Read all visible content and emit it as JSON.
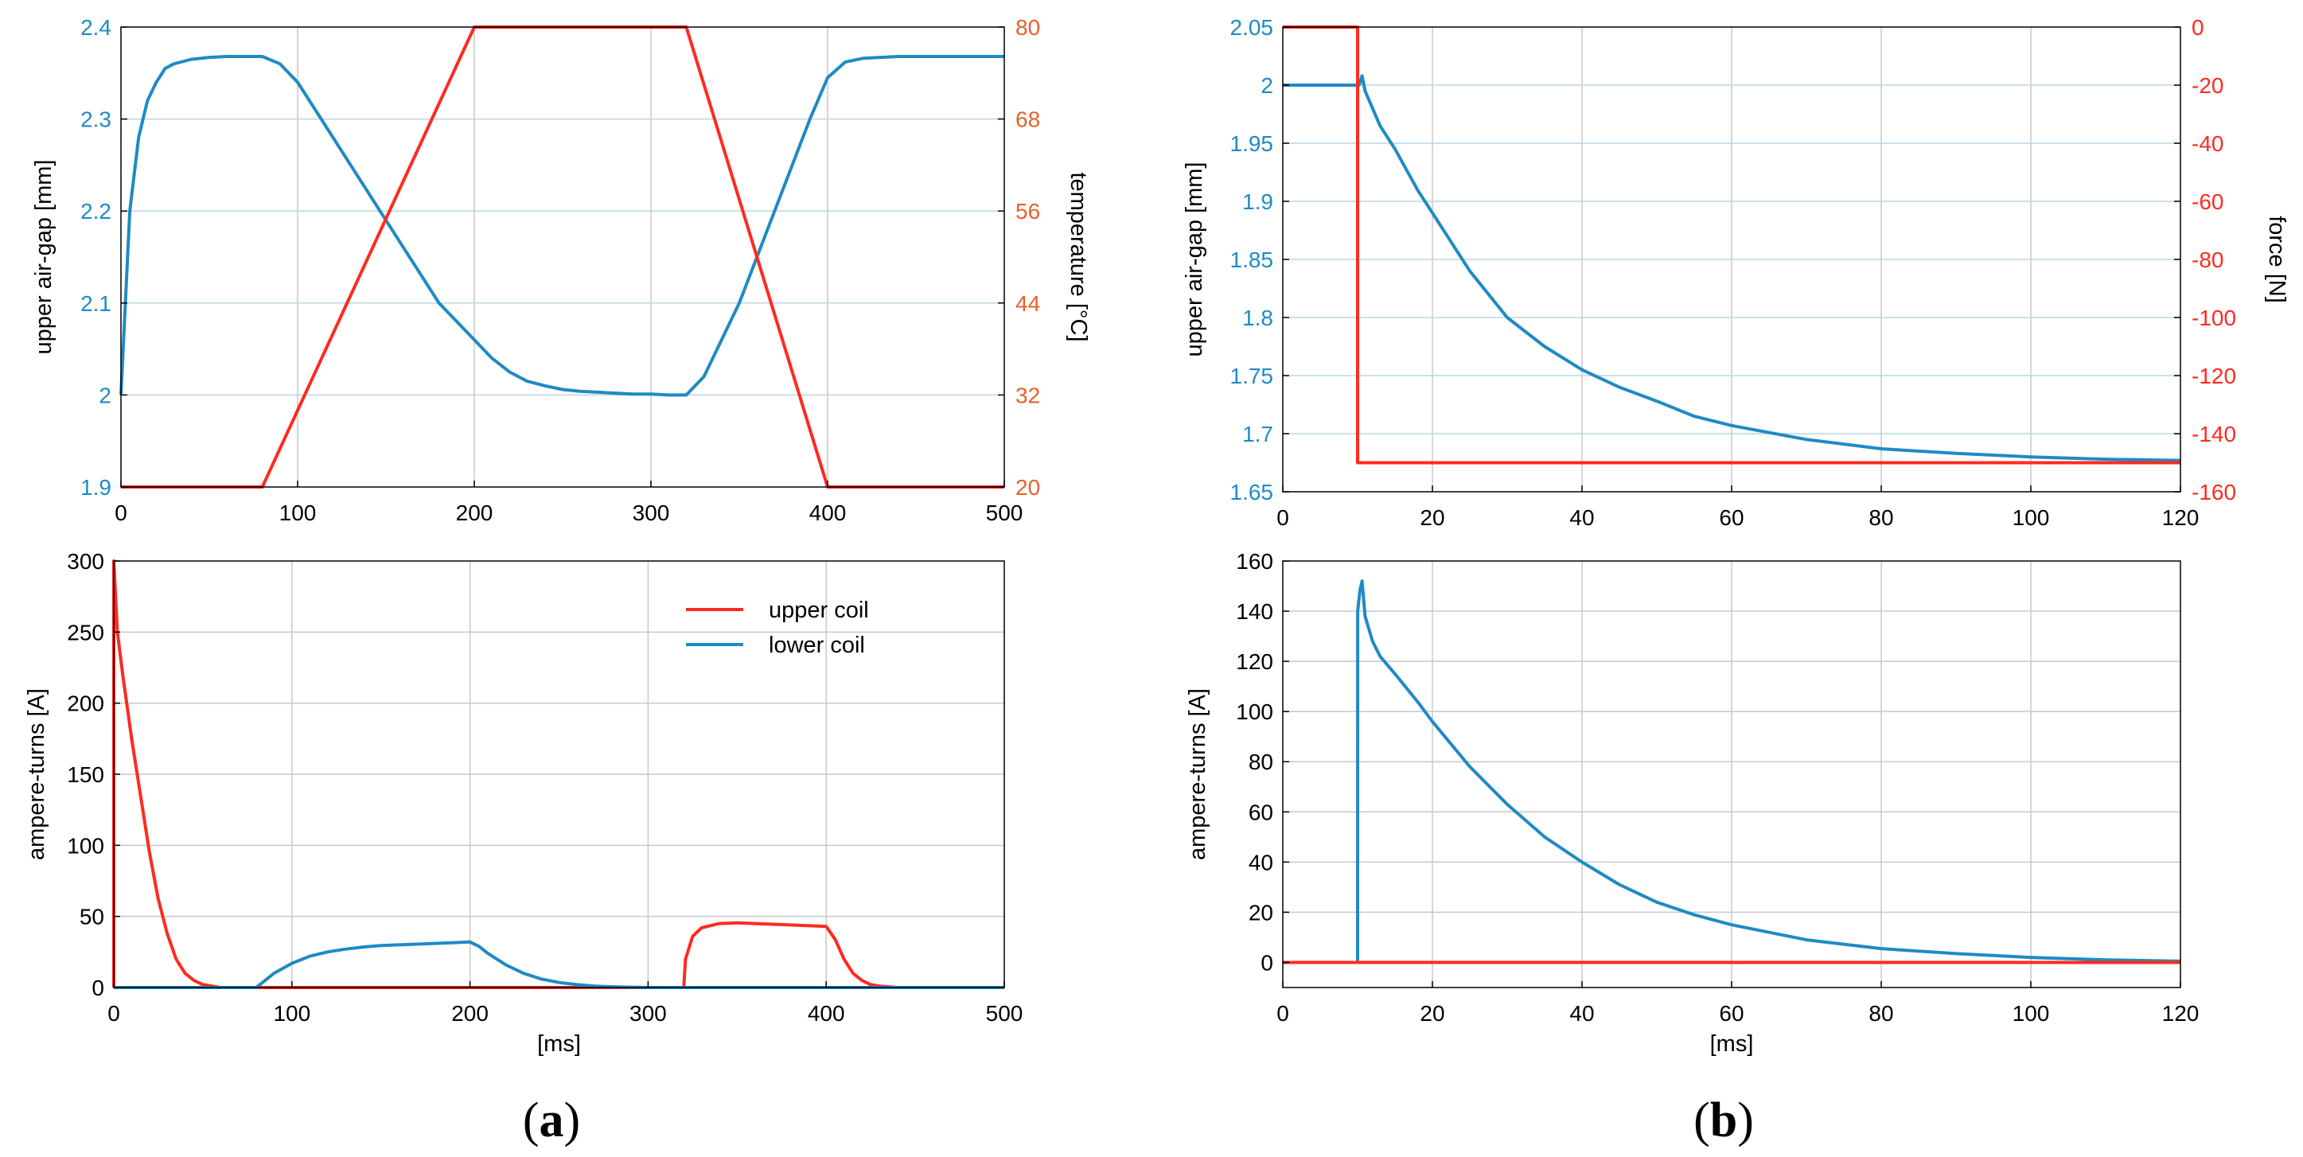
{
  "colors": {
    "blue": "#1f8ac4",
    "red": "#ff2a1f",
    "orange": "#e8602a",
    "grid": "#c8c8c8",
    "axis": "#000000"
  },
  "panel_labels": {
    "a_open": "(",
    "a": "a",
    "a_close": ")",
    "b_open": "(",
    "b": "b",
    "b_close": ")"
  },
  "chart_data": [
    {
      "id": "a_top",
      "type": "line",
      "xlim": [
        0,
        500
      ],
      "xticks": [
        0,
        100,
        200,
        300,
        400,
        500
      ],
      "ylim": [
        1.9,
        2.4
      ],
      "yticks": [
        "1.9",
        "2",
        "2.1",
        "2.2",
        "2.3",
        "2.4"
      ],
      "ylabel": "upper air-gap [mm]",
      "y2lim": [
        20,
        80
      ],
      "y2ticks": [
        "20",
        "32",
        "44",
        "56",
        "68",
        "80"
      ],
      "y2label": "temperature [°C]",
      "grid": true,
      "series": [
        {
          "name": "upper air-gap",
          "axis": "left",
          "color": "blue",
          "x": [
            0,
            5,
            10,
            15,
            20,
            25,
            30,
            40,
            50,
            60,
            70,
            80,
            90,
            100,
            110,
            120,
            130,
            140,
            150,
            160,
            170,
            180,
            190,
            200,
            210,
            220,
            230,
            240,
            250,
            260,
            270,
            280,
            290,
            300,
            310,
            320,
            330,
            340,
            350,
            360,
            370,
            380,
            390,
            400,
            410,
            420,
            440,
            460,
            480,
            500
          ],
          "y": [
            2.0,
            2.2,
            2.28,
            2.32,
            2.34,
            2.355,
            2.36,
            2.365,
            2.367,
            2.368,
            2.368,
            2.368,
            2.36,
            2.34,
            2.31,
            2.28,
            2.25,
            2.22,
            2.19,
            2.16,
            2.13,
            2.1,
            2.08,
            2.06,
            2.04,
            2.025,
            2.015,
            2.01,
            2.006,
            2.004,
            2.003,
            2.002,
            2.001,
            2.001,
            2.0,
            2.0,
            2.02,
            2.06,
            2.1,
            2.15,
            2.2,
            2.25,
            2.3,
            2.345,
            2.362,
            2.366,
            2.368,
            2.368,
            2.368,
            2.368
          ]
        },
        {
          "name": "temperature",
          "axis": "right",
          "color": "red",
          "x": [
            0,
            80,
            200,
            320,
            400,
            500
          ],
          "y": [
            20,
            20,
            80,
            80,
            20,
            20
          ]
        }
      ]
    },
    {
      "id": "a_bottom",
      "type": "line",
      "xlim": [
        0,
        500
      ],
      "xticks": [
        0,
        100,
        200,
        300,
        400,
        500
      ],
      "ylim": [
        0,
        300
      ],
      "yticks": [
        "0",
        "50",
        "100",
        "150",
        "200",
        "250",
        "300"
      ],
      "xlabel": "[ms]",
      "ylabel": "ampere-turns [A]",
      "grid": true,
      "legend_position": "top-right",
      "legend": [
        "upper coil",
        "lower coil"
      ],
      "series": [
        {
          "name": "upper coil",
          "color": "red",
          "x": [
            0,
            0.01,
            2,
            5,
            10,
            15,
            20,
            25,
            30,
            35,
            40,
            45,
            50,
            60,
            80,
            320,
            321,
            325,
            330,
            340,
            350,
            360,
            370,
            380,
            390,
            400,
            405,
            410,
            415,
            420,
            425,
            430,
            440,
            450,
            500
          ],
          "y": [
            0,
            300,
            250,
            220,
            175,
            135,
            95,
            62,
            38,
            20,
            10,
            5,
            2,
            0,
            0,
            0,
            20,
            36,
            42,
            45,
            45.5,
            45,
            44.5,
            44,
            43.5,
            43,
            34,
            20,
            10,
            5,
            2,
            1,
            0,
            0,
            0
          ]
        },
        {
          "name": "lower coil",
          "color": "blue",
          "x": [
            0,
            80,
            85,
            90,
            100,
            110,
            120,
            130,
            140,
            150,
            160,
            170,
            180,
            190,
            200,
            205,
            210,
            220,
            230,
            240,
            250,
            260,
            270,
            280,
            290,
            300,
            500
          ],
          "y": [
            0,
            0,
            5,
            10,
            17,
            22,
            25,
            27,
            28.5,
            29.5,
            30,
            30.5,
            31,
            31.5,
            32,
            29,
            24,
            16,
            10,
            6,
            3.5,
            2,
            1,
            0.5,
            0.2,
            0,
            0
          ]
        }
      ]
    },
    {
      "id": "b_top",
      "type": "line",
      "xlim": [
        0,
        120
      ],
      "xticks": [
        0,
        20,
        40,
        60,
        80,
        100,
        120
      ],
      "ylim": [
        1.65,
        2.05
      ],
      "yticks": [
        "1.65",
        "1.7",
        "1.75",
        "1.8",
        "1.85",
        "1.9",
        "1.95",
        "2",
        "2.05"
      ],
      "ylabel": "upper air-gap [mm]",
      "y2lim": [
        -160,
        0
      ],
      "y2ticks": [
        "-160",
        "-140",
        "-120",
        "-100",
        "-80",
        "-60",
        "-40",
        "-20",
        "0"
      ],
      "y2label": "force [N]",
      "grid": true,
      "series": [
        {
          "name": "upper air-gap",
          "axis": "left",
          "color": "blue",
          "x": [
            0,
            10,
            10.2,
            10.6,
            11,
            12,
            13,
            15,
            18,
            20,
            25,
            30,
            35,
            40,
            45,
            50,
            55,
            60,
            70,
            80,
            90,
            100,
            110,
            120
          ],
          "y": [
            2.0,
            2.0,
            2.0,
            2.008,
            1.995,
            1.98,
            1.965,
            1.945,
            1.91,
            1.89,
            1.84,
            1.8,
            1.775,
            1.755,
            1.74,
            1.728,
            1.715,
            1.707,
            1.695,
            1.687,
            1.683,
            1.68,
            1.678,
            1.677
          ]
        },
        {
          "name": "force",
          "axis": "right",
          "color": "red",
          "x": [
            0,
            10,
            10,
            120
          ],
          "y": [
            0,
            0,
            -150,
            -150
          ]
        }
      ]
    },
    {
      "id": "b_bottom",
      "type": "line",
      "xlim": [
        0,
        120
      ],
      "xticks": [
        0,
        20,
        40,
        60,
        80,
        100,
        120
      ],
      "ylim": [
        -10,
        160
      ],
      "yticks": [
        "0",
        "20",
        "40",
        "60",
        "80",
        "100",
        "120",
        "140",
        "160"
      ],
      "xlabel": "[ms]",
      "ylabel": "ampere-turns [A]",
      "grid": true,
      "series": [
        {
          "name": "lower coil",
          "color": "blue",
          "x": [
            0,
            10,
            10.01,
            10.3,
            10.6,
            11,
            12,
            13,
            15,
            18,
            20,
            25,
            30,
            35,
            40,
            45,
            50,
            55,
            60,
            70,
            80,
            90,
            100,
            110,
            120
          ],
          "y": [
            0,
            0,
            140,
            148,
            152,
            138,
            128,
            122,
            115,
            104,
            96,
            78,
            63,
            50,
            40,
            31,
            24,
            19,
            15,
            9,
            5.5,
            3.5,
            2,
            1,
            0.5
          ]
        },
        {
          "name": "upper coil",
          "color": "red",
          "x": [
            0,
            120
          ],
          "y": [
            0,
            0
          ]
        }
      ]
    }
  ]
}
